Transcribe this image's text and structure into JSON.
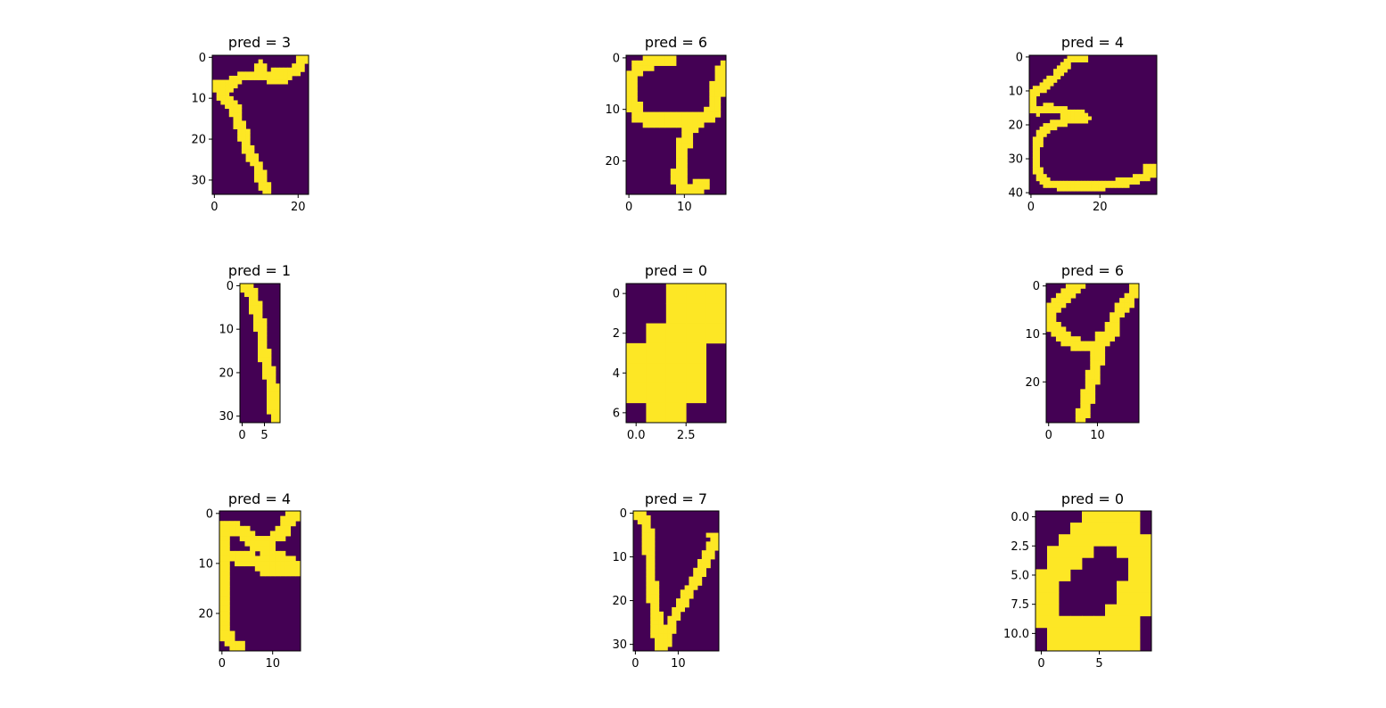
{
  "colors": {
    "background": "#440154",
    "foreground": "#fde725",
    "axis": "#000000"
  },
  "chart_data": [
    {
      "type": "heatmap",
      "title": "pred = 3",
      "width": 23,
      "height": 34,
      "xticks": [
        "0",
        "20"
      ],
      "yticks": [
        "0",
        "10",
        "20",
        "30"
      ],
      "strokes": [
        [
          [
            20.5,
            3.4
          ],
          [
            17.9,
            4.2
          ],
          [
            14,
            4.9
          ],
          [
            10.2,
            5.2
          ],
          [
            7.1,
            4.8
          ],
          [
            4.5,
            7.2
          ],
          [
            2,
            8
          ],
          [
            0.3,
            7.4
          ]
        ],
        [
          [
            22.5,
            0.3
          ],
          [
            21.6,
            0.6
          ],
          [
            20.5,
            2.4
          ],
          [
            18.9,
            4
          ],
          [
            17.5,
            5.5
          ],
          [
            14.9,
            5.8
          ],
          [
            11.9,
            4.4
          ],
          [
            11.7,
            2.6
          ],
          [
            11.1,
            2.8
          ]
        ],
        [
          [
            1.6,
            7.1
          ],
          [
            2.6,
            10
          ],
          [
            4,
            11.5
          ],
          [
            5.5,
            12.9
          ],
          [
            5.9,
            16.1
          ],
          [
            7.2,
            18.1
          ],
          [
            7.8,
            20.5
          ],
          [
            8.3,
            22.6
          ],
          [
            9.7,
            25.3
          ],
          [
            10.9,
            27.1
          ],
          [
            11.6,
            29.7
          ],
          [
            12,
            31.2
          ],
          [
            13.2,
            33.2
          ]
        ]
      ]
    },
    {
      "type": "heatmap",
      "title": "pred = 6",
      "width": 18,
      "height": 27,
      "xticks": [
        "0",
        "10"
      ],
      "yticks": [
        "0",
        "10",
        "20"
      ],
      "strokes": [
        [
          [
            17.5,
            2.7
          ],
          [
            16.2,
            7.7
          ],
          [
            15.8,
            10.3
          ],
          [
            14.7,
            11.7
          ],
          [
            12.7,
            12.5
          ],
          [
            8.4,
            12.6
          ],
          [
            4.9,
            12.7
          ],
          [
            2.1,
            11.5
          ],
          [
            1.3,
            9.1
          ],
          [
            0.3,
            6.2
          ],
          [
            0.8,
            4.8
          ],
          [
            2,
            2.6
          ],
          [
            3.6,
            1.4
          ],
          [
            5.8,
            0.9
          ],
          [
            7.8,
            0.8
          ]
        ],
        [
          [
            11.4,
            12.8
          ],
          [
            11.1,
            15.6
          ],
          [
            10.3,
            17.5
          ],
          [
            9.9,
            20.5
          ],
          [
            9.7,
            24
          ],
          [
            10.6,
            26.2
          ],
          [
            12.2,
            26.6
          ],
          [
            13.3,
            25
          ]
        ]
      ]
    },
    {
      "type": "heatmap",
      "title": "pred = 4",
      "width": 37,
      "height": 41,
      "xticks": [
        "0",
        "20"
      ],
      "yticks": [
        "0",
        "10",
        "20",
        "30",
        "40"
      ],
      "strokes": [
        [
          [
            15.8,
            0.6
          ],
          [
            12.1,
            0.7
          ],
          [
            9.8,
            3.8
          ],
          [
            7.2,
            6.7
          ],
          [
            4.5,
            9
          ],
          [
            0.8,
            11.5
          ],
          [
            0.5,
            15.4
          ],
          [
            2.6,
            16.4
          ],
          [
            5.2,
            15.4
          ],
          [
            8.9,
            16.2
          ],
          [
            12.5,
            17.1
          ],
          [
            15.5,
            17.5
          ],
          [
            16.4,
            18.3
          ]
        ],
        [
          [
            16,
            19.2
          ],
          [
            13.3,
            18.4
          ],
          [
            8.6,
            20
          ],
          [
            4.3,
            21.8
          ],
          [
            2.4,
            25
          ],
          [
            1.9,
            28.7
          ],
          [
            2,
            32.7
          ],
          [
            3.4,
            36.1
          ],
          [
            5.5,
            37.8
          ],
          [
            9.2,
            38.4
          ],
          [
            14,
            38.8
          ],
          [
            17.6,
            38.7
          ],
          [
            20.5,
            38.4
          ],
          [
            23.9,
            38
          ],
          [
            27.9,
            37.4
          ],
          [
            30.9,
            36.7
          ],
          [
            33.7,
            35.6
          ],
          [
            35.6,
            34.6
          ],
          [
            36.3,
            33.6
          ],
          [
            34.1,
            33.3
          ]
        ]
      ]
    },
    {
      "type": "heatmap",
      "title": "pred = 1",
      "width": 9,
      "height": 32,
      "xticks": [
        "0",
        "5"
      ],
      "yticks": [
        "0",
        "10",
        "20",
        "30"
      ],
      "strokes": [
        [
          [
            1.1,
            0.5
          ],
          [
            2,
            1
          ],
          [
            2.9,
            2.9
          ],
          [
            3.6,
            5.8
          ],
          [
            4.3,
            8.7
          ],
          [
            4.9,
            11.7
          ],
          [
            5.2,
            14.7
          ],
          [
            5.6,
            17.6
          ],
          [
            6.5,
            20.3
          ],
          [
            7.2,
            22.8
          ],
          [
            7.4,
            25.7
          ],
          [
            7.7,
            29.5
          ],
          [
            8,
            31.8
          ]
        ]
      ]
    },
    {
      "type": "heatmap",
      "title": "pred = 0",
      "width": 5,
      "height": 7,
      "xticks": [
        "0.0",
        "2.5"
      ],
      "yticks": [
        "0",
        "2",
        "4",
        "6"
      ],
      "pixels": [
        [
          0,
          0,
          1,
          1,
          1
        ],
        [
          0,
          0,
          1,
          1,
          1
        ],
        [
          0,
          1,
          1,
          1,
          1
        ],
        [
          1,
          1,
          1,
          1,
          0
        ],
        [
          1,
          1,
          1,
          1,
          0
        ],
        [
          1,
          1,
          1,
          1,
          0
        ],
        [
          0,
          1,
          1,
          0,
          0
        ]
      ]
    },
    {
      "type": "heatmap",
      "title": "pred = 6",
      "width": 19,
      "height": 29,
      "xticks": [
        "0",
        "10"
      ],
      "yticks": [
        "0",
        "10",
        "20"
      ],
      "strokes": [
        [
          [
            18.2,
            1.4
          ],
          [
            16.2,
            4.2
          ],
          [
            14.1,
            7
          ],
          [
            13.4,
            10.7
          ],
          [
            10.2,
            13.1
          ],
          [
            7.2,
            12.9
          ],
          [
            3.4,
            11
          ],
          [
            1.4,
            9.1
          ],
          [
            0.8,
            7.8
          ],
          [
            1.2,
            5.1
          ],
          [
            3.1,
            3.3
          ],
          [
            5.2,
            1.5
          ],
          [
            6.4,
            0.5
          ]
        ],
        [
          [
            11.7,
            11
          ],
          [
            10.9,
            14.4
          ],
          [
            9.8,
            17.7
          ],
          [
            9.1,
            20.8
          ],
          [
            8.6,
            23.6
          ],
          [
            7.9,
            26.3
          ],
          [
            7,
            28.6
          ]
        ]
      ]
    },
    {
      "type": "heatmap",
      "title": "pred = 4",
      "width": 16,
      "height": 28,
      "xticks": [
        "0",
        "10"
      ],
      "yticks": [
        "0",
        "10",
        "20"
      ],
      "strokes": [
        [
          [
            15,
            0.5
          ],
          [
            13.5,
            1.7
          ],
          [
            12.7,
            3.8
          ],
          [
            9.6,
            6.1
          ],
          [
            7.2,
            6.9
          ],
          [
            6,
            5
          ],
          [
            3.4,
            3.4
          ],
          [
            1,
            3.6
          ],
          [
            0.3,
            7.2
          ],
          [
            0.4,
            10.7
          ],
          [
            0.5,
            14
          ],
          [
            0.7,
            17.6
          ],
          [
            0.8,
            21.3
          ],
          [
            1.2,
            24.6
          ],
          [
            2.6,
            26.7
          ],
          [
            3.5,
            27.3
          ]
        ],
        [
          [
            3.3,
            9.3
          ],
          [
            5.5,
            9.3
          ],
          [
            7.4,
            10
          ],
          [
            8.9,
            11.5
          ],
          [
            11.4,
            11.9
          ],
          [
            13.6,
            12
          ],
          [
            15.5,
            11.8
          ],
          [
            15.2,
            10.8
          ],
          [
            12.9,
            9.9
          ],
          [
            10.6,
            9.1
          ],
          [
            9.3,
            8.2
          ]
        ]
      ]
    },
    {
      "type": "heatmap",
      "title": "pred = 7",
      "width": 20,
      "height": 32,
      "xticks": [
        "0",
        "10"
      ],
      "yticks": [
        "0",
        "10",
        "20",
        "30"
      ],
      "strokes": [
        [
          [
            0.3,
            0.5
          ],
          [
            2,
            0.9
          ],
          [
            3.1,
            2.8
          ],
          [
            3.4,
            6.2
          ],
          [
            3.8,
            10.2
          ],
          [
            4,
            14.3
          ],
          [
            4.5,
            18.9
          ],
          [
            5.4,
            24.5
          ],
          [
            5.8,
            28.5
          ],
          [
            6.1,
            31.3
          ],
          [
            7.2,
            30.4
          ],
          [
            8.1,
            27.7
          ],
          [
            9.8,
            23.8
          ],
          [
            11.9,
            20.1
          ],
          [
            13.8,
            16.9
          ],
          [
            16,
            13
          ],
          [
            17.6,
            9.9
          ],
          [
            19.1,
            6.5
          ],
          [
            18.7,
            5.9
          ]
        ]
      ]
    },
    {
      "type": "heatmap",
      "title": "pred = 0",
      "width": 10,
      "height": 12,
      "xticks": [
        "0",
        "5"
      ],
      "yticks": [
        "0.0",
        "2.5",
        "5.0",
        "7.5",
        "10.0"
      ],
      "pixels": [
        [
          0,
          0,
          0,
          0,
          1,
          1,
          1,
          1,
          1,
          0
        ],
        [
          0,
          0,
          0,
          1,
          1,
          1,
          1,
          1,
          1,
          0
        ],
        [
          0,
          0,
          1,
          1,
          1,
          1,
          1,
          1,
          1,
          1
        ],
        [
          0,
          1,
          1,
          1,
          1,
          0,
          0,
          1,
          1,
          1
        ],
        [
          0,
          1,
          1,
          1,
          0,
          0,
          0,
          0,
          1,
          1
        ],
        [
          1,
          1,
          1,
          0,
          0,
          0,
          0,
          0,
          1,
          1
        ],
        [
          1,
          1,
          0,
          0,
          0,
          0,
          0,
          1,
          1,
          1
        ],
        [
          1,
          1,
          0,
          0,
          0,
          0,
          0,
          1,
          1,
          1
        ],
        [
          1,
          1,
          0,
          0,
          0,
          0,
          1,
          1,
          1,
          1
        ],
        [
          1,
          1,
          1,
          1,
          1,
          1,
          1,
          1,
          1,
          0
        ],
        [
          0,
          1,
          1,
          1,
          1,
          1,
          1,
          1,
          1,
          0
        ],
        [
          0,
          1,
          1,
          1,
          1,
          1,
          1,
          1,
          1,
          0
        ]
      ]
    }
  ]
}
